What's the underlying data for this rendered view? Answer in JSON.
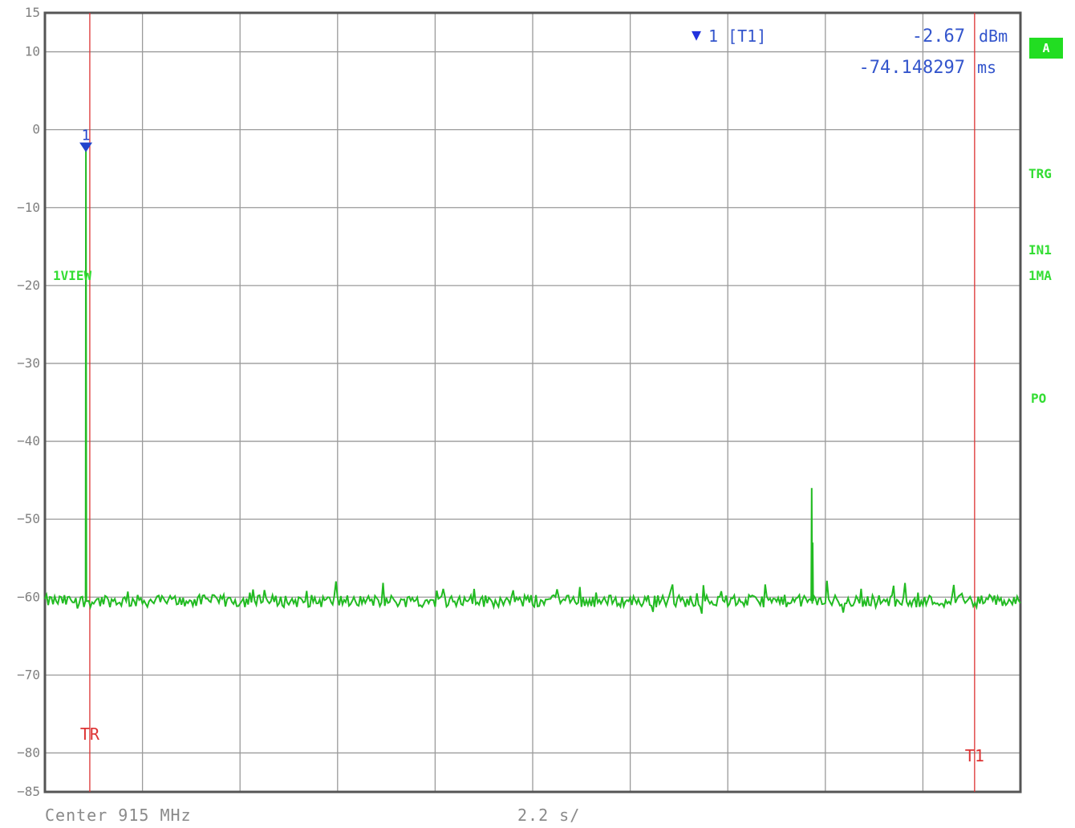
{
  "chart_data": {
    "type": "line",
    "ylim": [
      -85,
      15
    ],
    "yticks": [
      15,
      10,
      0,
      -10,
      -20,
      -30,
      -40,
      -50,
      -60,
      -70,
      -80,
      -85
    ],
    "grid": true,
    "series": [
      {
        "color": "#22bb22",
        "baseline": -60.5,
        "spikes": [
          {
            "pos": 0.042,
            "value": -2.67
          },
          {
            "pos": 0.786,
            "value": -46
          },
          {
            "pos": 0.787,
            "value": -53
          }
        ]
      }
    ],
    "marker": {
      "label": "1",
      "pos": 0.042,
      "value": -2.67,
      "color": "#2244cc"
    },
    "marker_readout": {
      "marker_symbol": "▼",
      "marker_label": "1 [T1]",
      "value": "-2.67",
      "unit": "dBm",
      "time": "-74.148297",
      "time_unit": "ms"
    },
    "trigger_line": {
      "label": "TR",
      "pos": 0.046,
      "color": "#dd3333"
    },
    "t1_line": {
      "label": "T1",
      "pos": 0.953,
      "color": "#dd3333"
    },
    "trace_label": "1VIEW",
    "center_text": "Center 915 MHz",
    "span_text": "2.2 s/"
  },
  "side_labels": {
    "trg": "TRG",
    "in1": "IN1",
    "ma": "1MA",
    "po": "PO"
  },
  "badge": "A"
}
